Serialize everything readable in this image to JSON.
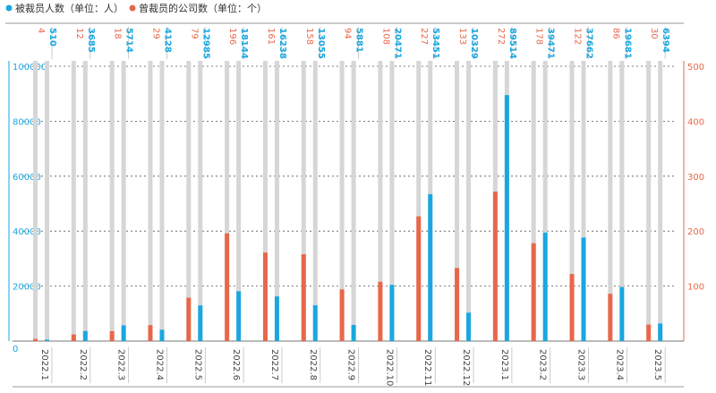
{
  "legend": [
    {
      "name": "被裁员人数（单位：人）",
      "color": "#1aa7e0"
    },
    {
      "name": "曾裁员的公司数（单位：个）",
      "color": "#e8674a"
    }
  ],
  "chart_data": {
    "type": "bar",
    "categories": [
      "2022.1",
      "2022.2",
      "2022.3",
      "2022.4",
      "2022.5",
      "2022.6",
      "2022.7",
      "2022.8",
      "2022.9",
      "2022.10",
      "2022.11",
      "2022.12",
      "2023.1",
      "2023.2",
      "2023.3",
      "2023.4",
      "2023.5"
    ],
    "series": [
      {
        "name": "被裁员人数（单位：人）",
        "axis": "left",
        "color": "#1aa7e0",
        "values": [
          510,
          3685,
          5714,
          4128,
          12985,
          18144,
          16238,
          13055,
          5881,
          20471,
          53451,
          10329,
          89514,
          39471,
          37662,
          19681,
          6394
        ]
      },
      {
        "name": "曾裁员的公司数（单位：个）",
        "axis": "right",
        "color": "#e8674a",
        "values": [
          4,
          12,
          18,
          29,
          79,
          196,
          161,
          158,
          94,
          108,
          227,
          133,
          272,
          178,
          122,
          86,
          30
        ]
      }
    ],
    "y_left": {
      "min": 0,
      "max": 100000,
      "ticks": [
        0,
        20000,
        40000,
        60000,
        80000,
        100000
      ],
      "color": "#1aa7e0"
    },
    "y_right": {
      "min": 0,
      "max": 500,
      "ticks": [
        0,
        100,
        200,
        300,
        400,
        500
      ],
      "color": "#e8674a"
    },
    "grid": "dashed horizontal",
    "legend_position": "top-left"
  }
}
